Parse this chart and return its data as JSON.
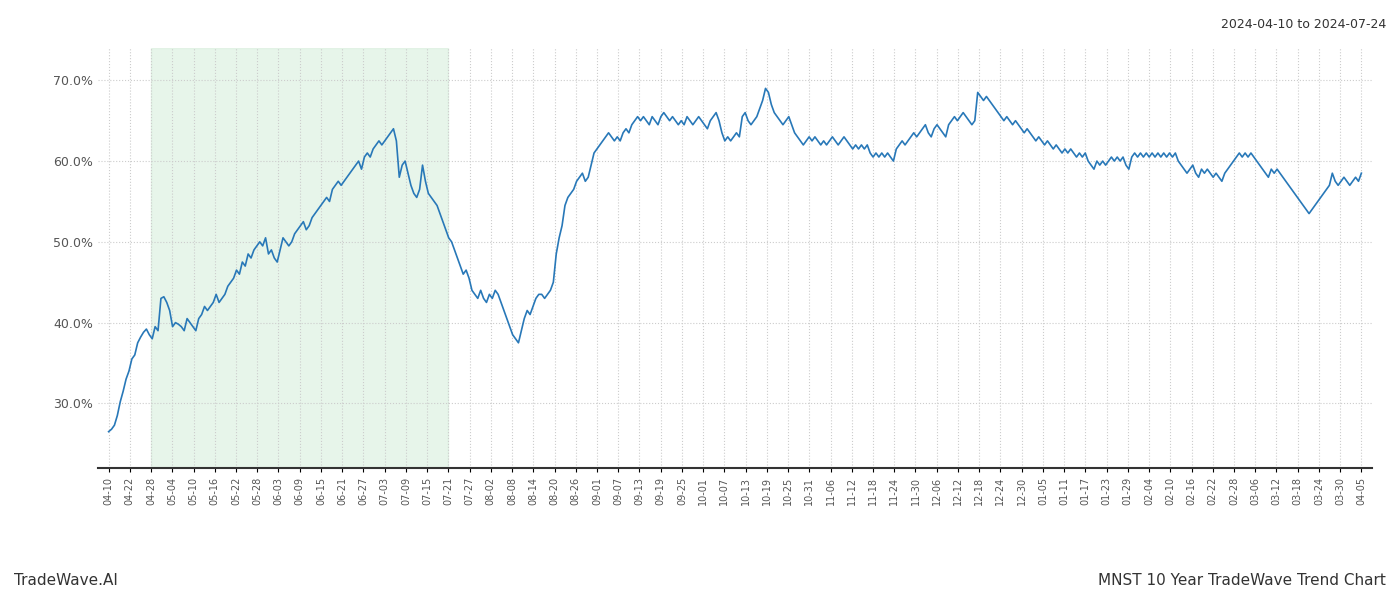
{
  "title_top_right": "2024-04-10 to 2024-07-24",
  "title_bottom_right": "MNST 10 Year TradeWave Trend Chart",
  "title_bottom_left": "TradeWave.AI",
  "line_color": "#2878b8",
  "line_width": 1.2,
  "shade_color": "#d4edda",
  "shade_alpha": 0.55,
  "background_color": "#ffffff",
  "grid_color": "#cccccc",
  "grid_style": ":",
  "ylim": [
    22,
    74
  ],
  "yticks": [
    30.0,
    40.0,
    50.0,
    60.0,
    70.0
  ],
  "ytick_labels": [
    "30.0%",
    "40.0%",
    "50.0%",
    "60.0%",
    "70.0%"
  ],
  "x_labels": [
    "04-10",
    "04-22",
    "04-28",
    "05-04",
    "05-10",
    "05-16",
    "05-22",
    "05-28",
    "06-03",
    "06-09",
    "06-15",
    "06-21",
    "06-27",
    "07-03",
    "07-09",
    "07-15",
    "07-21",
    "07-27",
    "08-02",
    "08-08",
    "08-14",
    "08-20",
    "08-26",
    "09-01",
    "09-07",
    "09-13",
    "09-19",
    "09-25",
    "10-01",
    "10-07",
    "10-13",
    "10-19",
    "10-25",
    "10-31",
    "11-06",
    "11-12",
    "11-18",
    "11-24",
    "11-30",
    "12-06",
    "12-12",
    "12-18",
    "12-24",
    "12-30",
    "01-05",
    "01-11",
    "01-17",
    "01-23",
    "01-29",
    "02-04",
    "02-10",
    "02-16",
    "02-22",
    "02-28",
    "03-06",
    "03-12",
    "03-18",
    "03-24",
    "03-30",
    "04-05"
  ],
  "shade_x_start_label": "04-28",
  "shade_x_end_label": "07-21",
  "y_values": [
    26.5,
    26.8,
    27.3,
    28.5,
    30.2,
    31.5,
    33.0,
    34.0,
    35.5,
    36.0,
    37.5,
    38.2,
    38.8,
    39.2,
    38.5,
    38.0,
    39.5,
    39.0,
    43.0,
    43.2,
    42.5,
    41.5,
    39.5,
    40.0,
    39.8,
    39.5,
    39.0,
    40.5,
    40.0,
    39.5,
    39.0,
    40.5,
    41.0,
    42.0,
    41.5,
    42.0,
    42.5,
    43.5,
    42.5,
    43.0,
    43.5,
    44.5,
    45.0,
    45.5,
    46.5,
    46.0,
    47.5,
    47.0,
    48.5,
    48.0,
    49.0,
    49.5,
    50.0,
    49.5,
    50.5,
    48.5,
    49.0,
    48.0,
    47.5,
    49.0,
    50.5,
    50.0,
    49.5,
    50.0,
    51.0,
    51.5,
    52.0,
    52.5,
    51.5,
    52.0,
    53.0,
    53.5,
    54.0,
    54.5,
    55.0,
    55.5,
    55.0,
    56.5,
    57.0,
    57.5,
    57.0,
    57.5,
    58.0,
    58.5,
    59.0,
    59.5,
    60.0,
    59.0,
    60.5,
    61.0,
    60.5,
    61.5,
    62.0,
    62.5,
    62.0,
    62.5,
    63.0,
    63.5,
    64.0,
    62.5,
    58.0,
    59.5,
    60.0,
    58.5,
    57.0,
    56.0,
    55.5,
    56.5,
    59.5,
    57.5,
    56.0,
    55.5,
    55.0,
    54.5,
    53.5,
    52.5,
    51.5,
    50.5,
    50.0,
    49.0,
    48.0,
    47.0,
    46.0,
    46.5,
    45.5,
    44.0,
    43.5,
    43.0,
    44.0,
    43.0,
    42.5,
    43.5,
    43.0,
    44.0,
    43.5,
    42.5,
    41.5,
    40.5,
    39.5,
    38.5,
    38.0,
    37.5,
    39.0,
    40.5,
    41.5,
    41.0,
    42.0,
    43.0,
    43.5,
    43.5,
    43.0,
    43.5,
    44.0,
    45.0,
    48.5,
    50.5,
    52.0,
    54.5,
    55.5,
    56.0,
    56.5,
    57.5,
    58.0,
    58.5,
    57.5,
    58.0,
    59.5,
    61.0,
    61.5,
    62.0,
    62.5,
    63.0,
    63.5,
    63.0,
    62.5,
    63.0,
    62.5,
    63.5,
    64.0,
    63.5,
    64.5,
    65.0,
    65.5,
    65.0,
    65.5,
    65.0,
    64.5,
    65.5,
    65.0,
    64.5,
    65.5,
    66.0,
    65.5,
    65.0,
    65.5,
    65.0,
    64.5,
    65.0,
    64.5,
    65.5,
    65.0,
    64.5,
    65.0,
    65.5,
    65.0,
    64.5,
    64.0,
    65.0,
    65.5,
    66.0,
    65.0,
    63.5,
    62.5,
    63.0,
    62.5,
    63.0,
    63.5,
    63.0,
    65.5,
    66.0,
    65.0,
    64.5,
    65.0,
    65.5,
    66.5,
    67.5,
    69.0,
    68.5,
    67.0,
    66.0,
    65.5,
    65.0,
    64.5,
    65.0,
    65.5,
    64.5,
    63.5,
    63.0,
    62.5,
    62.0,
    62.5,
    63.0,
    62.5,
    63.0,
    62.5,
    62.0,
    62.5,
    62.0,
    62.5,
    63.0,
    62.5,
    62.0,
    62.5,
    63.0,
    62.5,
    62.0,
    61.5,
    62.0,
    61.5,
    62.0,
    61.5,
    62.0,
    61.0,
    60.5,
    61.0,
    60.5,
    61.0,
    60.5,
    61.0,
    60.5,
    60.0,
    61.5,
    62.0,
    62.5,
    62.0,
    62.5,
    63.0,
    63.5,
    63.0,
    63.5,
    64.0,
    64.5,
    63.5,
    63.0,
    64.0,
    64.5,
    64.0,
    63.5,
    63.0,
    64.5,
    65.0,
    65.5,
    65.0,
    65.5,
    66.0,
    65.5,
    65.0,
    64.5,
    65.0,
    68.5,
    68.0,
    67.5,
    68.0,
    67.5,
    67.0,
    66.5,
    66.0,
    65.5,
    65.0,
    65.5,
    65.0,
    64.5,
    65.0,
    64.5,
    64.0,
    63.5,
    64.0,
    63.5,
    63.0,
    62.5,
    63.0,
    62.5,
    62.0,
    62.5,
    62.0,
    61.5,
    62.0,
    61.5,
    61.0,
    61.5,
    61.0,
    61.5,
    61.0,
    60.5,
    61.0,
    60.5,
    61.0,
    60.0,
    59.5,
    59.0,
    60.0,
    59.5,
    60.0,
    59.5,
    60.0,
    60.5,
    60.0,
    60.5,
    60.0,
    60.5,
    59.5,
    59.0,
    60.5,
    61.0,
    60.5,
    61.0,
    60.5,
    61.0,
    60.5,
    61.0,
    60.5,
    61.0,
    60.5,
    61.0,
    60.5,
    61.0,
    60.5,
    61.0,
    60.0,
    59.5,
    59.0,
    58.5,
    59.0,
    59.5,
    58.5,
    58.0,
    59.0,
    58.5,
    59.0,
    58.5,
    58.0,
    58.5,
    58.0,
    57.5,
    58.5,
    59.0,
    59.5,
    60.0,
    60.5,
    61.0,
    60.5,
    61.0,
    60.5,
    61.0,
    60.5,
    60.0,
    59.5,
    59.0,
    58.5,
    58.0,
    59.0,
    58.5,
    59.0,
    58.5,
    58.0,
    57.5,
    57.0,
    56.5,
    56.0,
    55.5,
    55.0,
    54.5,
    54.0,
    53.5,
    54.0,
    54.5,
    55.0,
    55.5,
    56.0,
    56.5,
    57.0,
    58.5,
    57.5,
    57.0,
    57.5,
    58.0,
    57.5,
    57.0,
    57.5,
    58.0,
    57.5,
    58.5
  ]
}
